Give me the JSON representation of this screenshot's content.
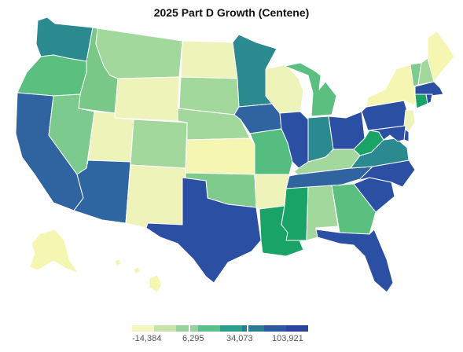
{
  "title": "2025 Part D Growth (Centene)",
  "legend": {
    "labels": [
      "-14,384",
      "6,295",
      "34,073",
      "103,921"
    ],
    "colors": [
      "#f4f5bf",
      "#c8e3aa",
      "#96d29b",
      "#5fbf8c",
      "#2e9f8e",
      "#2d7c95",
      "#2b5b9e",
      "#2a44a0"
    ]
  },
  "states": [
    {
      "id": "WA",
      "color": "#2a8a8f"
    },
    {
      "id": "OR",
      "color": "#5abf7f"
    },
    {
      "id": "CA",
      "color": "#2f64a0"
    },
    {
      "id": "ID",
      "color": "#79c887"
    },
    {
      "id": "NV",
      "color": "#7cca8d"
    },
    {
      "id": "MT",
      "color": "#a2d89c"
    },
    {
      "id": "WY",
      "color": "#eef3ba"
    },
    {
      "id": "UT",
      "color": "#eef3ba"
    },
    {
      "id": "AZ",
      "color": "#2e66a1"
    },
    {
      "id": "CO",
      "color": "#a2d89c"
    },
    {
      "id": "NM",
      "color": "#eef3ba"
    },
    {
      "id": "ND",
      "color": "#eef3ba"
    },
    {
      "id": "SD",
      "color": "#a2d89c"
    },
    {
      "id": "NE",
      "color": "#a2d89c"
    },
    {
      "id": "KS",
      "color": "#f6f6b3"
    },
    {
      "id": "OK",
      "color": "#7fcb8d"
    },
    {
      "id": "TX",
      "color": "#2b4fa2"
    },
    {
      "id": "MN",
      "color": "#2a8a8f"
    },
    {
      "id": "IA",
      "color": "#2f64a0"
    },
    {
      "id": "MO",
      "color": "#55bd80"
    },
    {
      "id": "AR",
      "color": "#eef3ba"
    },
    {
      "id": "LA",
      "color": "#19a366"
    },
    {
      "id": "WI",
      "color": "#eef3ba"
    },
    {
      "id": "IL",
      "color": "#2b4fa2"
    },
    {
      "id": "MI",
      "color": "#5abf7f"
    },
    {
      "id": "IN",
      "color": "#2a8a8f"
    },
    {
      "id": "OH",
      "color": "#2b4fa2"
    },
    {
      "id": "KY",
      "color": "#a2d89c"
    },
    {
      "id": "TN",
      "color": "#2f64a0"
    },
    {
      "id": "MS",
      "color": "#19a366"
    },
    {
      "id": "AL",
      "color": "#a2d89c"
    },
    {
      "id": "GA",
      "color": "#5abf7f"
    },
    {
      "id": "FL",
      "color": "#2b4fa2"
    },
    {
      "id": "SC",
      "color": "#2b4fa2"
    },
    {
      "id": "NC",
      "color": "#2b4fa2"
    },
    {
      "id": "VA",
      "color": "#2a8a8f"
    },
    {
      "id": "WV",
      "color": "#19a366"
    },
    {
      "id": "PA",
      "color": "#2b4fa2"
    },
    {
      "id": "NY",
      "color": "#f6f6b3"
    },
    {
      "id": "VT",
      "color": "#7fcb8d"
    },
    {
      "id": "NH",
      "color": "#a2d89c"
    },
    {
      "id": "ME",
      "color": "#f6f6b3"
    },
    {
      "id": "MA",
      "color": "#2b4fa2"
    },
    {
      "id": "CT",
      "color": "#19a366"
    },
    {
      "id": "RI",
      "color": "#2b4fa2"
    },
    {
      "id": "NJ",
      "color": "#eef3ba"
    },
    {
      "id": "DE",
      "color": "#2b4fa2"
    },
    {
      "id": "MD",
      "color": "#2b4fa2"
    },
    {
      "id": "AK",
      "color": "#f6f6b3"
    },
    {
      "id": "HI",
      "color": "#f6f6b3"
    }
  ]
}
